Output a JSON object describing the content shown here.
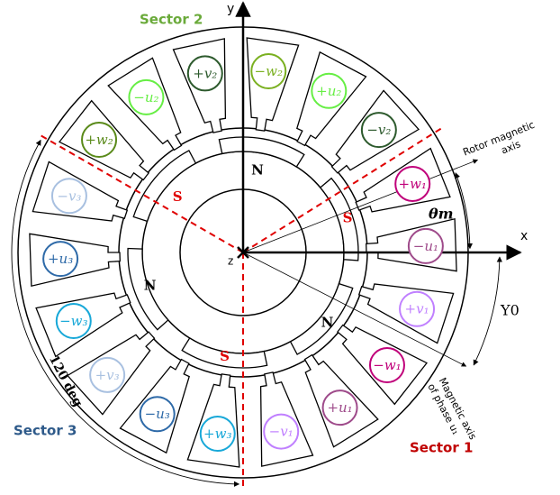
{
  "sectors": [
    "Sector 2",
    "Sector 3",
    "Sector 1"
  ],
  "axes": {
    "x": "x",
    "y": "y",
    "z": "z"
  },
  "coils": [
    {
      "label": "+w₁",
      "color": "#c0007a"
    },
    {
      "label": "−u₁",
      "color": "#9e4a8a"
    },
    {
      "label": "+v₁",
      "color": "#c080ff"
    },
    {
      "label": "−w₁",
      "color": "#c0007a"
    },
    {
      "label": "+u₁",
      "color": "#9e4a8a"
    },
    {
      "label": "−v₁",
      "color": "#c080ff"
    },
    {
      "label": "+w₃",
      "color": "#18a8d8"
    },
    {
      "label": "−u₃",
      "color": "#2e6aa8"
    },
    {
      "label": "+v₃",
      "color": "#a8c0e0"
    },
    {
      "label": "−w₃",
      "color": "#18a8d8"
    },
    {
      "label": "+u₃",
      "color": "#2e6aa8"
    },
    {
      "label": "−v₃",
      "color": "#a8c0e0"
    },
    {
      "label": "+w₂",
      "color": "#5a8a1a"
    },
    {
      "label": "−u₂",
      "color": "#66ee44"
    },
    {
      "label": "+v₂",
      "color": "#2d5a2d"
    },
    {
      "label": "−w₂",
      "color": "#7ab020"
    },
    {
      "label": "+u₂",
      "color": "#66ee44"
    },
    {
      "label": "−v₂",
      "color": "#2d5a2d"
    }
  ],
  "poles": [
    "N",
    "S",
    "S",
    "N",
    "N",
    "S"
  ],
  "annotations": {
    "rotor_axis": [
      "Rotor magnetic",
      "axis"
    ],
    "theta": "θm",
    "gamma": "Υ0",
    "phase_axis": [
      "Magnetic axis",
      "of phase u₁"
    ],
    "sector_angle": "120 deg"
  }
}
